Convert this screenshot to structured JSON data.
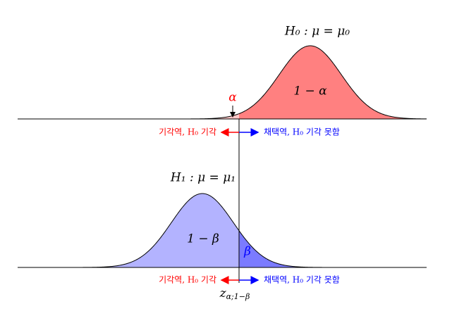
{
  "top": {
    "hypothesis": "H₀ : μ = μ₀",
    "area_label": "1 − α",
    "tail_label": "α",
    "reject_region": "기각역, H₀ 기각",
    "accept_region": "채택역, H₀ 기각 못함"
  },
  "bottom": {
    "hypothesis": "H₁ : μ = μ₁",
    "area_label": "1 − β",
    "tail_label": "β",
    "reject_region": "기각역, H₀ 기각",
    "accept_region": "채택역, H₀ 기각 못함"
  },
  "critical": {
    "symbol": "z",
    "subscript": "α;1−β"
  }
}
